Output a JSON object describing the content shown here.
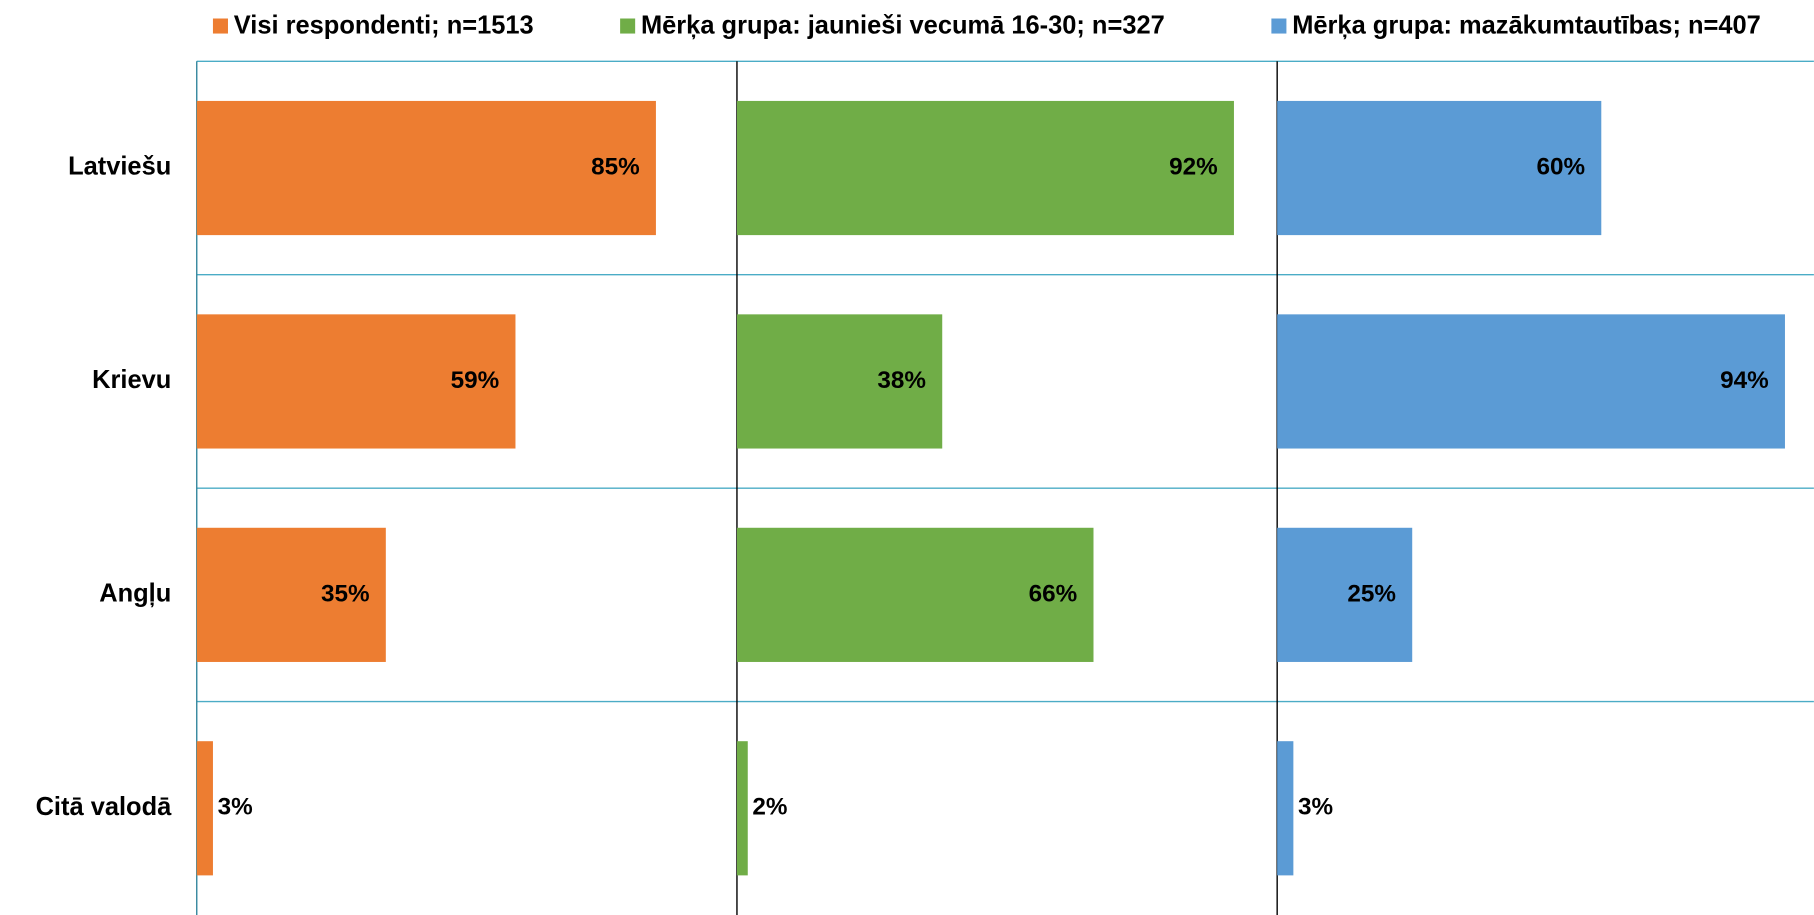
{
  "chart_data": {
    "type": "bar",
    "orientation": "horizontal",
    "layout": "panels",
    "categories": [
      "Latviešu",
      "Krievu",
      "Angļu",
      "Citā valodā"
    ],
    "xlim": [
      0,
      100
    ],
    "legend": "top",
    "series": [
      {
        "name": "Visi respondenti; n=1513",
        "color": "#ed7d31",
        "values": [
          85,
          59,
          35,
          3
        ],
        "value_labels": [
          "85%",
          "59%",
          "35%",
          "3%"
        ]
      },
      {
        "name": "Mērķa grupa: jaunieši vecumā 16-30; n=327",
        "color": "#70ad47",
        "values": [
          92,
          38,
          66,
          2
        ],
        "value_labels": [
          "92%",
          "38%",
          "66%",
          "2%"
        ]
      },
      {
        "name": "Mērķa grupa: mazākumtautības; n=407",
        "color": "#5b9bd5",
        "values": [
          60,
          94,
          25,
          3
        ],
        "value_labels": [
          "60%",
          "94%",
          "25%",
          "3%"
        ]
      }
    ]
  }
}
